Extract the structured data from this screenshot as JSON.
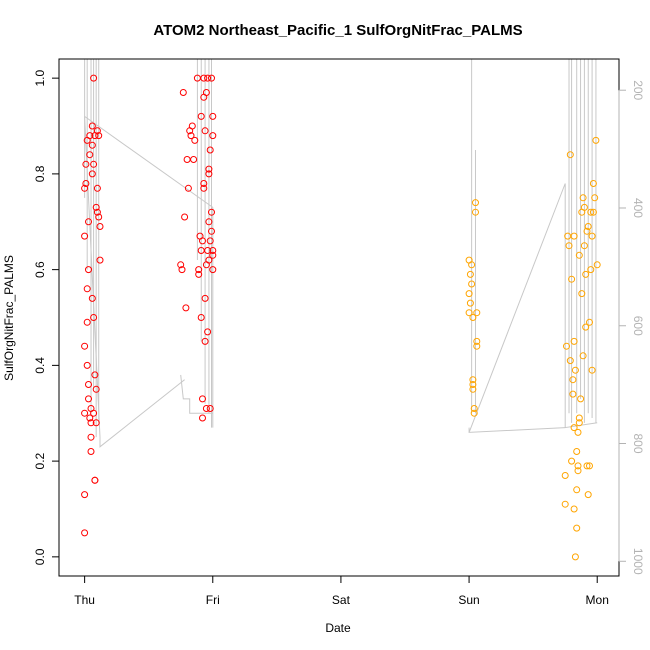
{
  "chart_data": {
    "type": "scatter",
    "title": "ATOM2 Northeast_Pacific_1 SulfOrgNitFrac_PALMS",
    "xlabel": "Date",
    "ylabel": "SulfOrgNitFrac_PALMS",
    "x_ticks": [
      {
        "day": 0,
        "label": "Thu"
      },
      {
        "day": 1,
        "label": "Fri"
      },
      {
        "day": 2,
        "label": "Sat"
      },
      {
        "day": 3,
        "label": "Sun"
      },
      {
        "day": 4,
        "label": "Mon"
      }
    ],
    "xlim": [
      -0.2,
      4.17
    ],
    "ylim": [
      -0.04,
      1.04
    ],
    "y_ticks": [
      0.0,
      0.2,
      0.4,
      0.6,
      0.8,
      1.0
    ],
    "y2_ticks": [
      200,
      400,
      600,
      800,
      1000
    ],
    "y2lim": [
      147,
      1025
    ],
    "grid": false,
    "series": [
      {
        "color": "#ff0000",
        "points": [
          [
            0.0,
            0.05
          ],
          [
            0.0,
            0.13
          ],
          [
            0.0,
            0.3
          ],
          [
            0.0,
            0.44
          ],
          [
            0.0,
            0.67
          ],
          [
            0.0,
            0.77
          ],
          [
            0.01,
            0.78
          ],
          [
            0.01,
            0.82
          ],
          [
            0.02,
            0.87
          ],
          [
            0.02,
            0.56
          ],
          [
            0.02,
            0.49
          ],
          [
            0.02,
            0.4
          ],
          [
            0.03,
            0.36
          ],
          [
            0.03,
            0.33
          ],
          [
            0.03,
            0.7
          ],
          [
            0.03,
            0.6
          ],
          [
            0.04,
            0.84
          ],
          [
            0.04,
            0.88
          ],
          [
            0.04,
            0.29
          ],
          [
            0.05,
            0.22
          ],
          [
            0.05,
            0.25
          ],
          [
            0.05,
            0.31
          ],
          [
            0.06,
            0.54
          ],
          [
            0.06,
            0.8
          ],
          [
            0.06,
            0.86
          ],
          [
            0.06,
            0.9
          ],
          [
            0.07,
            1.0
          ],
          [
            0.07,
            0.5
          ],
          [
            0.07,
            0.82
          ],
          [
            0.08,
            0.88
          ],
          [
            0.08,
            0.38
          ],
          [
            0.08,
            0.16
          ],
          [
            0.09,
            0.35
          ],
          [
            0.09,
            0.28
          ],
          [
            0.09,
            0.73
          ],
          [
            0.1,
            0.72
          ],
          [
            0.1,
            0.77
          ],
          [
            0.1,
            0.89
          ],
          [
            0.11,
            0.88
          ],
          [
            0.12,
            0.69
          ],
          [
            0.12,
            0.62
          ],
          [
            0.11,
            0.71
          ],
          [
            0.05,
            0.28
          ],
          [
            0.07,
            0.3
          ],
          [
            0.08,
            0.16
          ],
          [
            0.75,
            0.61
          ],
          [
            0.76,
            0.6
          ],
          [
            0.77,
            0.97
          ],
          [
            0.78,
            0.71
          ],
          [
            0.79,
            0.52
          ],
          [
            0.8,
            0.83
          ],
          [
            0.81,
            0.77
          ],
          [
            0.82,
            0.89
          ],
          [
            0.83,
            0.88
          ],
          [
            0.84,
            0.9
          ],
          [
            0.85,
            0.83
          ],
          [
            0.86,
            0.87
          ],
          [
            0.88,
            1.0
          ],
          [
            0.89,
            0.59
          ],
          [
            0.89,
            0.6
          ],
          [
            0.9,
            0.67
          ],
          [
            0.91,
            0.92
          ],
          [
            0.91,
            0.5
          ],
          [
            0.92,
            0.33
          ],
          [
            0.92,
            0.29
          ],
          [
            0.93,
            1.0
          ],
          [
            0.93,
            0.96
          ],
          [
            0.93,
            0.77
          ],
          [
            0.94,
            0.54
          ],
          [
            0.94,
            0.45
          ],
          [
            0.94,
            0.89
          ],
          [
            0.95,
            0.97
          ],
          [
            0.95,
            0.31
          ],
          [
            0.95,
            0.61
          ],
          [
            0.96,
            1.0
          ],
          [
            0.96,
            0.47
          ],
          [
            0.97,
            0.81
          ],
          [
            0.97,
            0.62
          ],
          [
            0.97,
            0.8
          ],
          [
            0.98,
            0.66
          ],
          [
            0.98,
            0.31
          ],
          [
            0.98,
            0.85
          ],
          [
            0.99,
            0.68
          ],
          [
            0.99,
            1.0
          ],
          [
            0.99,
            0.72
          ],
          [
            1.0,
            0.92
          ],
          [
            1.0,
            0.6
          ],
          [
            1.0,
            0.64
          ],
          [
            1.0,
            0.88
          ],
          [
            1.0,
            0.63
          ],
          [
            0.91,
            0.64
          ],
          [
            0.92,
            0.66
          ],
          [
            0.93,
            0.78
          ],
          [
            0.96,
            0.64
          ],
          [
            0.97,
            0.7
          ]
        ]
      },
      {
        "color": "#ffa500",
        "points": [
          [
            3.0,
            0.62
          ],
          [
            3.0,
            0.55
          ],
          [
            3.0,
            0.51
          ],
          [
            3.01,
            0.59
          ],
          [
            3.01,
            0.53
          ],
          [
            3.02,
            0.57
          ],
          [
            3.02,
            0.61
          ],
          [
            3.03,
            0.5
          ],
          [
            3.03,
            0.37
          ],
          [
            3.03,
            0.36
          ],
          [
            3.04,
            0.31
          ],
          [
            3.04,
            0.3
          ],
          [
            3.05,
            0.72
          ],
          [
            3.05,
            0.74
          ],
          [
            3.06,
            0.51
          ],
          [
            3.06,
            0.45
          ],
          [
            3.06,
            0.44
          ],
          [
            3.03,
            0.35
          ],
          [
            3.75,
            0.17
          ],
          [
            3.75,
            0.11
          ],
          [
            3.76,
            0.44
          ],
          [
            3.77,
            0.67
          ],
          [
            3.78,
            0.65
          ],
          [
            3.79,
            0.84
          ],
          [
            3.79,
            0.41
          ],
          [
            3.8,
            0.58
          ],
          [
            3.8,
            0.2
          ],
          [
            3.81,
            0.37
          ],
          [
            3.81,
            0.34
          ],
          [
            3.82,
            0.67
          ],
          [
            3.82,
            0.27
          ],
          [
            3.82,
            0.1
          ],
          [
            3.83,
            0.0
          ],
          [
            3.83,
            0.39
          ],
          [
            3.84,
            0.06
          ],
          [
            3.84,
            0.14
          ],
          [
            3.84,
            0.22
          ],
          [
            3.85,
            0.26
          ],
          [
            3.85,
            0.19
          ],
          [
            3.86,
            0.28
          ],
          [
            3.86,
            0.63
          ],
          [
            3.87,
            0.33
          ],
          [
            3.88,
            0.72
          ],
          [
            3.88,
            0.55
          ],
          [
            3.89,
            0.42
          ],
          [
            3.89,
            0.75
          ],
          [
            3.9,
            0.73
          ],
          [
            3.9,
            0.65
          ],
          [
            3.91,
            0.59
          ],
          [
            3.91,
            0.48
          ],
          [
            3.92,
            0.68
          ],
          [
            3.92,
            0.19
          ],
          [
            3.93,
            0.69
          ],
          [
            3.93,
            0.13
          ],
          [
            3.94,
            0.49
          ],
          [
            3.95,
            0.6
          ],
          [
            3.95,
            0.72
          ],
          [
            3.96,
            0.67
          ],
          [
            3.97,
            0.78
          ],
          [
            3.97,
            0.72
          ],
          [
            3.98,
            0.75
          ],
          [
            3.99,
            0.87
          ],
          [
            4.0,
            0.61
          ],
          [
            3.96,
            0.39
          ],
          [
            3.82,
            0.45
          ],
          [
            3.85,
            0.18
          ],
          [
            3.86,
            0.29
          ],
          [
            3.94,
            0.19
          ]
        ]
      }
    ]
  },
  "background_line": {
    "color": "#c8c8c8",
    "segments": [
      [
        [
          0.0,
          0.92
        ],
        [
          0.12,
          0.25
        ],
        [
          0.12,
          0.23
        ],
        [
          0.78,
          0.37
        ]
      ],
      [
        [
          0.0,
          0.92
        ],
        [
          1.0,
          0.73
        ]
      ],
      [
        [
          0.75,
          0.38
        ],
        [
          0.77,
          0.33
        ],
        [
          0.82,
          0.33
        ],
        [
          0.82,
          0.3
        ],
        [
          1.0,
          0.3
        ]
      ],
      [
        [
          1.0,
          0.73
        ],
        [
          1.0,
          0.27
        ]
      ],
      [
        [
          3.0,
          0.27
        ],
        [
          3.0,
          0.26
        ],
        [
          3.75,
          0.27
        ]
      ],
      [
        [
          3.0,
          0.26
        ],
        [
          3.75,
          0.78
        ],
        [
          3.75,
          0.27
        ],
        [
          4.0,
          0.28
        ]
      ]
    ],
    "spikes": [
      [
        0.0,
        1.04,
        0.75
      ],
      [
        0.02,
        1.04,
        0.6
      ],
      [
        0.05,
        1.04,
        0.3
      ],
      [
        0.07,
        1.04,
        0.35
      ],
      [
        0.09,
        1.04,
        0.25
      ],
      [
        0.11,
        1.04,
        0.28
      ],
      [
        0.88,
        1.04,
        0.62
      ],
      [
        0.91,
        1.04,
        0.45
      ],
      [
        0.94,
        1.04,
        0.32
      ],
      [
        0.97,
        1.04,
        0.3
      ],
      [
        0.99,
        1.04,
        0.27
      ],
      [
        3.02,
        1.04,
        0.3
      ],
      [
        3.05,
        0.85,
        0.3
      ],
      [
        3.78,
        1.04,
        0.3
      ],
      [
        3.8,
        1.04,
        0.28
      ],
      [
        3.84,
        1.04,
        0.3
      ],
      [
        3.87,
        1.04,
        0.33
      ],
      [
        3.9,
        1.04,
        0.28
      ],
      [
        3.93,
        1.04,
        0.3
      ],
      [
        3.96,
        1.04,
        0.29
      ],
      [
        3.99,
        1.04,
        0.28
      ]
    ]
  }
}
